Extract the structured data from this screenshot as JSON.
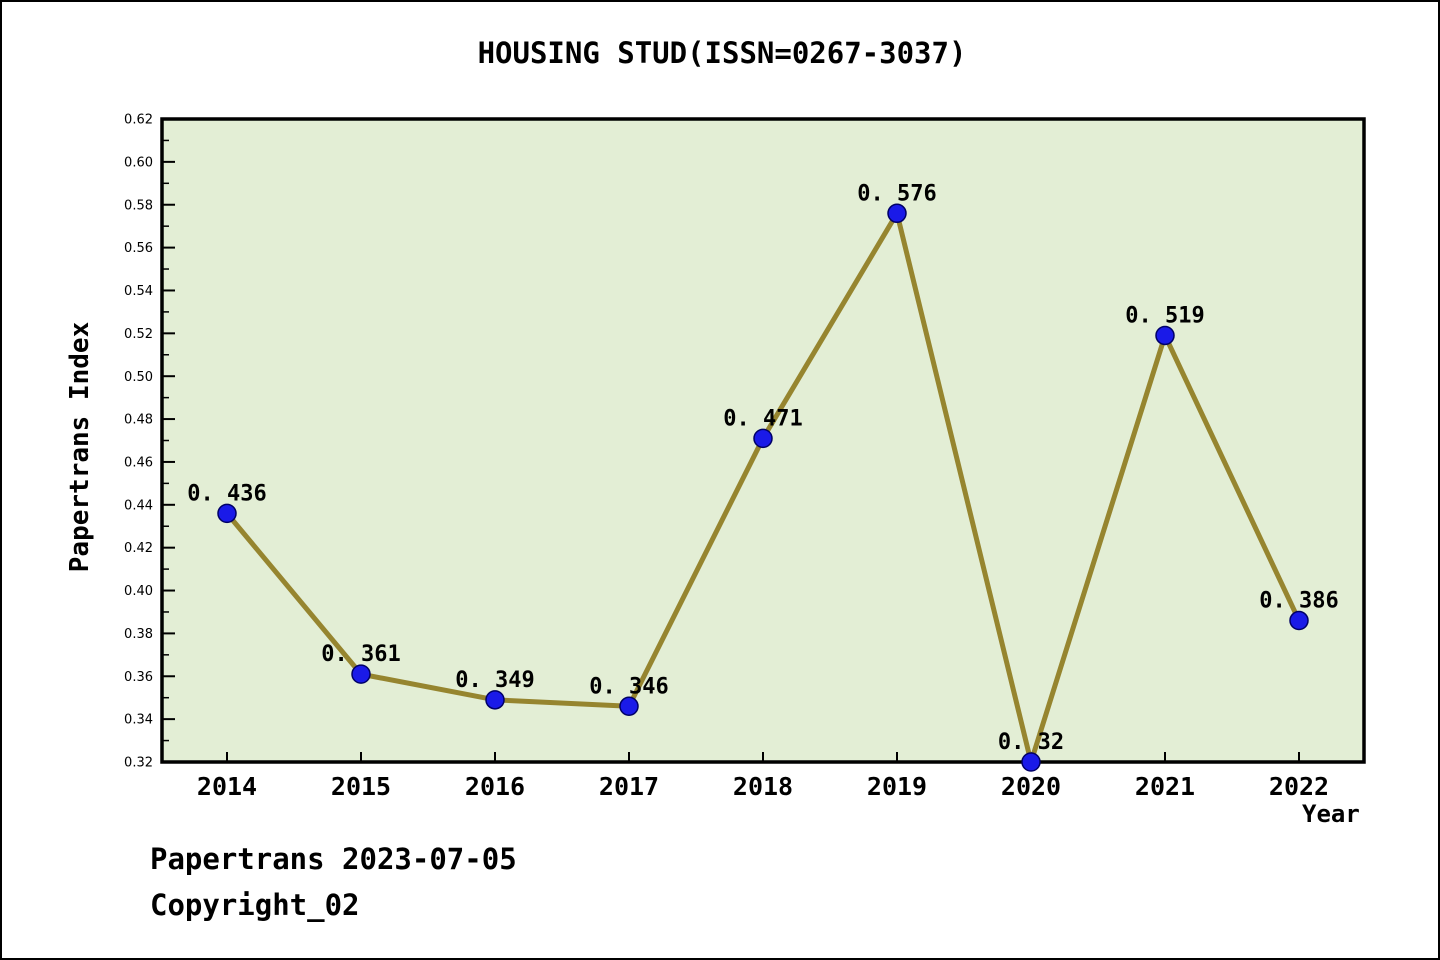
{
  "title": "HOUSING STUD(ISSN=0267-3037)",
  "axes": {
    "xlabel": "Year",
    "ylabel": "Papertrans Index"
  },
  "footer": {
    "line1": "Papertrans 2023-07-05",
    "line2": "Copyright_02"
  },
  "chart_data": {
    "type": "line",
    "title": "HOUSING STUD(ISSN=0267-3037)",
    "xlabel": "Year",
    "ylabel": "Papertrans Index",
    "x": [
      "2014",
      "2015",
      "2016",
      "2017",
      "2018",
      "2019",
      "2020",
      "2021",
      "2022"
    ],
    "values": [
      0.436,
      0.361,
      0.349,
      0.346,
      0.471,
      0.576,
      0.32,
      0.519,
      0.386
    ],
    "point_labels": [
      "0. 436",
      "0. 361",
      "0. 349",
      "0. 346",
      "0. 471",
      "0. 576",
      "0. 32",
      "0. 519",
      "0. 386"
    ],
    "ylim": [
      0.32,
      0.62
    ],
    "y_major_step": 0.02,
    "y_minor_step": 0.01,
    "grid": false,
    "legend": null,
    "colors": {
      "line": "#96852F",
      "marker_fill": "#1A1AE8",
      "marker_edge": "#000066",
      "plot_background": "#E3EED5",
      "axis": "#000000",
      "text": "#000000"
    }
  }
}
